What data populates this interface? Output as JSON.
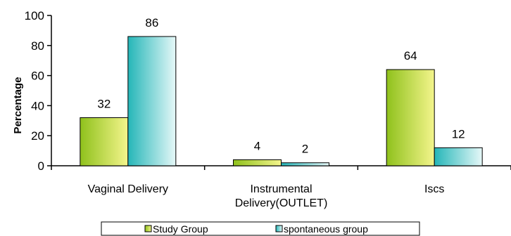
{
  "chart_data": {
    "type": "bar",
    "categories": [
      [
        "Vaginal  Delivery"
      ],
      [
        "Instrumental",
        "Delivery(OUTLET)"
      ],
      [
        "Iscs"
      ]
    ],
    "series": [
      {
        "name": "Study Group",
        "values": [
          32,
          4,
          64
        ],
        "color_light": "#f4f58c",
        "color_dark": "#8fc11c"
      },
      {
        "name": "spontaneous group",
        "values": [
          86,
          2,
          12
        ],
        "color_light": "#e6f8f8",
        "color_dark": "#25b6b8"
      }
    ],
    "ylabel": "Percentage",
    "ylim": [
      0,
      100
    ],
    "yticks": [
      0,
      20,
      40,
      60,
      80,
      100
    ],
    "grid": false,
    "legend_position": "bottom"
  }
}
